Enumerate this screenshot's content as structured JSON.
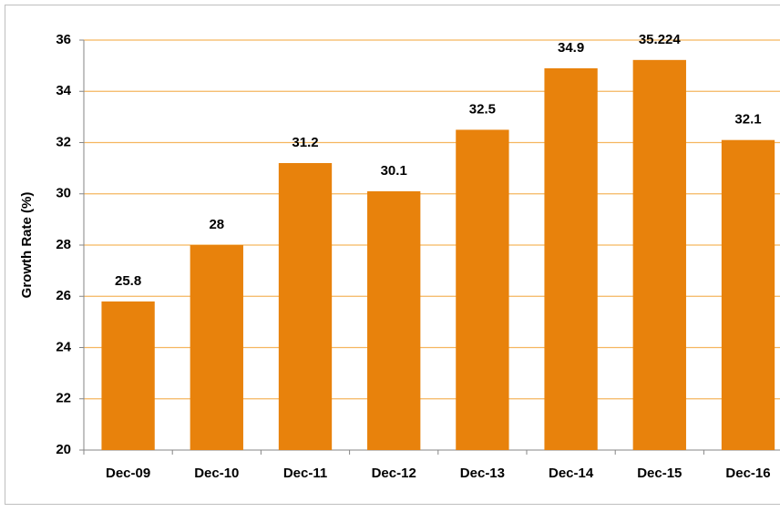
{
  "chart_data": {
    "type": "bar",
    "y_label": "Growth Rate (%)",
    "categories": [
      "Dec-09",
      "Dec-10",
      "Dec-11",
      "Dec-12",
      "Dec-13",
      "Dec-14",
      "Dec-15",
      "Dec-16"
    ],
    "values": [
      25.8,
      28,
      31.2,
      30.1,
      32.5,
      34.9,
      35.224,
      32.1
    ],
    "color": "#e8820c",
    "grid_color": "#f5b65f",
    "ylim": [
      20,
      36
    ],
    "yticks": [
      20,
      22,
      24,
      26,
      28,
      30,
      32,
      34,
      36
    ],
    "grid": true
  }
}
